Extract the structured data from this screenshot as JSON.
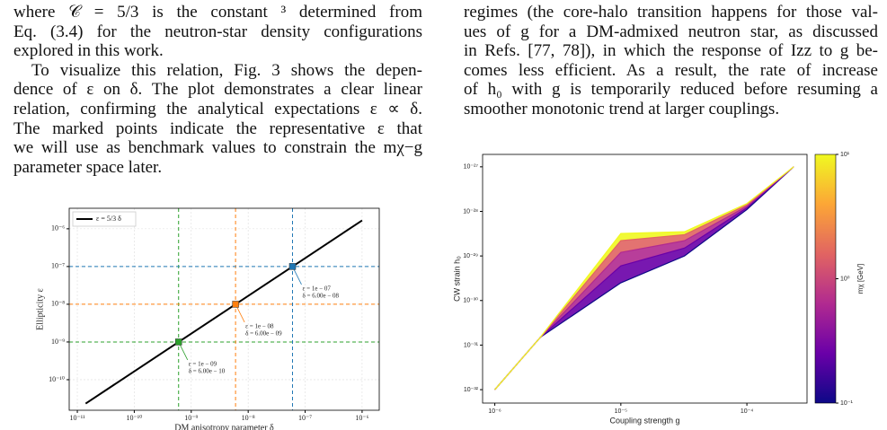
{
  "text": {
    "left": [
      [
        "where 𝒞 = 5/3 is the constant ³ determined from",
        "Eq. (3.4) for the neutron-star density configurations",
        "explored in this work."
      ],
      [
        "To visualize this relation, Fig. 3 shows the depen-",
        "dence of ε on δ. The plot demonstrates a clear linear",
        "relation, confirming the analytical expectations ε ∝ δ.",
        "The marked points indicate the representative ε that",
        "we will use as benchmark values to constrain the mχ−g",
        "parameter space later."
      ]
    ],
    "right": [
      [
        "regimes (the core-halo transition happens for those val-",
        "ues of g for a DM-admixed neutron star, as discussed",
        "in Refs. [77, 78]), in which the response of Izz to g be-",
        "comes less efficient. As a result, the rate of increase",
        "of h₀ with g is temporarily reduced before resuming a",
        "smoother monotonic trend at larger couplings."
      ]
    ]
  },
  "chart_data": [
    {
      "type": "line",
      "xlabel": "DM anisotropy parameter δ",
      "ylabel": "Ellipticity ε",
      "log": true,
      "grid": true,
      "legend": "upper left",
      "legend_label": "ε = 5/3 δ",
      "line_color": "#000000",
      "line": {
        "x": [
          1.4e-11,
          1e-06
        ],
        "y": [
          2.33e-11,
          1.667e-06
        ]
      },
      "points": [
        {
          "x": 6e-10,
          "y": 1e-09,
          "color": "#2ca02c",
          "label_eps": "ε = 1e − 09",
          "label_delta": "δ = 6.00e − 10"
        },
        {
          "x": 6e-09,
          "y": 1e-08,
          "color": "#ff7f0e",
          "label_eps": "ε = 1e − 08",
          "label_delta": "δ = 6.00e − 09"
        },
        {
          "x": 6e-08,
          "y": 1e-07,
          "color": "#1f77b4",
          "label_eps": "ε = 1e − 07",
          "label_delta": "δ = 6.00e − 08"
        }
      ],
      "xlim": [
        7.2e-12,
        2e-06
      ],
      "ylim": [
        1.55e-11,
        3.5e-06
      ],
      "xticks": [
        {
          "value": 1e-11,
          "label": "10⁻¹¹"
        },
        {
          "value": 1e-10,
          "label": "10⁻¹⁰"
        },
        {
          "value": 1e-09,
          "label": "10⁻⁹"
        },
        {
          "value": 1e-08,
          "label": "10⁻⁸"
        },
        {
          "value": 1e-07,
          "label": "10⁻⁷"
        },
        {
          "value": 1e-06,
          "label": "10⁻⁶"
        }
      ],
      "yticks": [
        {
          "value": 1e-10,
          "label": "10⁻¹⁰"
        },
        {
          "value": 1e-09,
          "label": "10⁻⁹"
        },
        {
          "value": 1e-08,
          "label": "10⁻⁸"
        },
        {
          "value": 1e-07,
          "label": "10⁻⁷"
        },
        {
          "value": 1e-06,
          "label": "10⁻⁶"
        }
      ]
    },
    {
      "type": "area",
      "xlabel": "Coupling strength g",
      "ylabel": "CW strain h₀",
      "log": true,
      "grid": false,
      "x": [
        1e-06,
        2.3e-06,
        1e-05,
        3.2e-05,
        0.0001,
        0.000235
      ],
      "series": [
        {
          "mass": 0.1,
          "color": "#0d0887",
          "values": [
            1e-32,
            1.5e-31,
            2.5e-30,
            1e-29,
            1.1e-28,
            1e-27
          ]
        },
        {
          "mass": 0.3,
          "color": "#6a00a8",
          "values": [
            1e-32,
            1.5e-31,
            6e-30,
            1.5e-29,
            1.2e-28,
            1e-27
          ]
        },
        {
          "mass": 1,
          "color": "#b12a90",
          "values": [
            1e-32,
            1.5e-31,
            1.2e-29,
            2.2e-29,
            1.3e-28,
            1e-27
          ]
        },
        {
          "mass": 3,
          "color": "#e16462",
          "values": [
            1e-32,
            1.5e-31,
            2.2e-29,
            3e-29,
            1.4e-28,
            1e-27
          ]
        },
        {
          "mass": 10,
          "color": "#f0f921",
          "values": [
            1e-32,
            1.5e-31,
            3.2e-29,
            3.5e-29,
            1.5e-28,
            1e-27
          ]
        }
      ],
      "xlim": [
        8e-07,
        0.0003
      ],
      "ylim": [
        5e-33,
        1.9e-27
      ],
      "xticks": [
        {
          "value": 1e-06,
          "label": "10⁻⁶"
        },
        {
          "value": 1e-05,
          "label": "10⁻⁵"
        },
        {
          "value": 0.0001,
          "label": "10⁻⁴"
        }
      ],
      "yticks": [
        {
          "value": 1e-32,
          "label": "10⁻³²"
        },
        {
          "value": 1e-31,
          "label": "10⁻³¹"
        },
        {
          "value": 1e-30,
          "label": "10⁻³⁰"
        },
        {
          "value": 1e-29,
          "label": "10⁻²⁹"
        },
        {
          "value": 1e-28,
          "label": "10⁻²⁸"
        },
        {
          "value": 1e-27,
          "label": "10⁻²⁷"
        }
      ],
      "colorbar_label": "mχ [GeV]",
      "colormap": [
        "#0d0887",
        "#6a00a8",
        "#b12a90",
        "#e16462",
        "#fca636",
        "#f0f921"
      ],
      "clim": [
        0.1,
        10
      ],
      "cticks": [
        {
          "value": 0.1,
          "label": "10⁻¹"
        },
        {
          "value": 1,
          "label": "10⁰"
        },
        {
          "value": 10,
          "label": "10¹"
        }
      ]
    }
  ]
}
